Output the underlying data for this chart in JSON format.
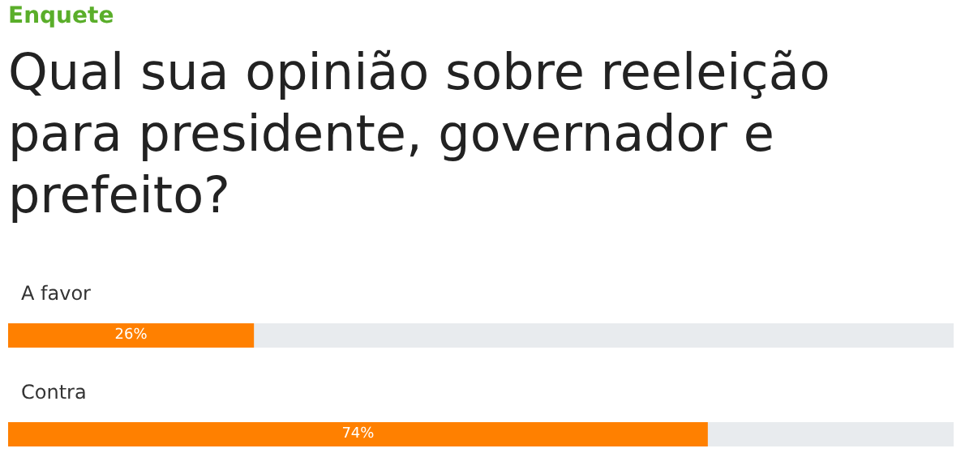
{
  "chart_data": {
    "type": "bar",
    "orientation": "horizontal",
    "subtitle": "Enquete",
    "title": "Qual sua opinião sobre reeleição para presidente, governador e prefeito?",
    "categories": [
      "A favor",
      "Contra"
    ],
    "values": [
      26,
      74
    ],
    "value_labels": [
      "26%",
      "74%"
    ],
    "color": "#ff8000",
    "xlim": [
      0,
      100
    ]
  }
}
